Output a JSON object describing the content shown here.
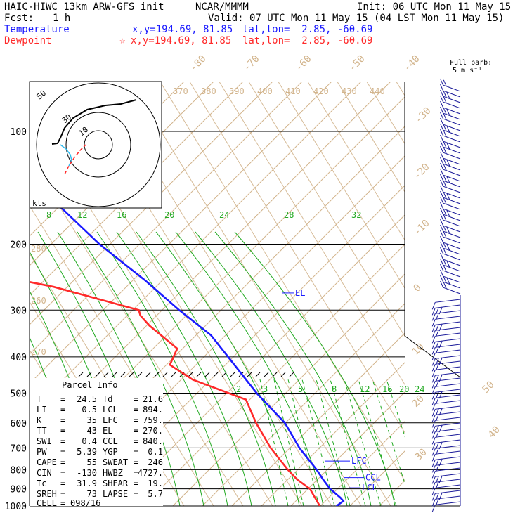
{
  "header": {
    "model": "HAIC-HIWC 13km ARW-GFS init",
    "agency": "NCAR/MMMM",
    "init": "Init: 06 UTC Mon 11 May 15",
    "fcst_label": "Fcst:",
    "fcst_value": "1 h",
    "valid": "Valid: 07 UTC Mon 11 May 15 (04 LST Mon 11 May 15)",
    "temp_label": "Temperature",
    "temp_xy": "x,y=194.69, 81.85",
    "temp_latlon": "lat,lon=  2.85, -60.69",
    "dew_label": "Dewpoint",
    "dew_star": "☆",
    "dew_xy": "x,y=194.69, 81.85",
    "dew_latlon": "lat,lon=  2.85, -60.69"
  },
  "colors": {
    "temperature": "#1a1aff",
    "dewpoint": "#ff2a2a",
    "dry_adiabat": "#d2b48c",
    "moist_adiabat": "#22aa22",
    "mixing_ratio": "#22aa22",
    "isobar": "#000000",
    "barb": "#1a1a99"
  },
  "barb_legend": {
    "line1": "Full barb:",
    "line2": "5 m s⁻¹"
  },
  "parcel_info": {
    "title": "Parcel Info",
    "rows": [
      {
        "l1": "T",
        "v1": "24.5",
        "l2": "Td",
        "v2": "21.6"
      },
      {
        "l1": "LI",
        "v1": "-0.5",
        "l2": "LCL",
        "v2": "894."
      },
      {
        "l1": "K",
        "v1": "35",
        "l2": "LFC",
        "v2": "759."
      },
      {
        "l1": "TT",
        "v1": "43",
        "l2": "EL",
        "v2": "270."
      },
      {
        "l1": "SWI",
        "v1": "0.4",
        "l2": "CCL",
        "v2": "840."
      },
      {
        "l1": "PW",
        "v1": "5.39",
        "l2": "YGP",
        "v2": "0.1"
      },
      {
        "l1": "CAPE",
        "v1": "55",
        "l2": "SWEAT",
        "v2": "246"
      },
      {
        "l1": "CIN",
        "v1": "-130",
        "l2": "HWBZ",
        "v2": "4727."
      },
      {
        "l1": "Tc",
        "v1": "31.9",
        "l2": "SHEAR",
        "v2": "19."
      },
      {
        "l1": "SREH",
        "v1": "73",
        "l2": "LAPSE",
        "v2": "5.7"
      }
    ],
    "cell_label": "CELL",
    "cell_value": "098/16"
  },
  "hodograph": {
    "axis_label": "kts",
    "ring_labels": [
      "10",
      "30",
      "50"
    ]
  },
  "levels": {
    "LFC": "LFC",
    "CCL": "CCL",
    "LCL": "LCL",
    "EL": "EL"
  },
  "chart_data": {
    "type": "line",
    "chart_kind": "skew-T log-P",
    "x_axis": "Temperature (°C), skewed",
    "y_axis": "Pressure (hPa), log scale",
    "y_ticks": [
      100,
      200,
      300,
      400,
      500,
      600,
      700,
      800,
      900,
      1000
    ],
    "dry_adiabat_labels": [
      "370",
      "380",
      "390",
      "400",
      "410",
      "420",
      "430",
      "440",
      "280",
      "260",
      "270"
    ],
    "isotherm_labels": [
      "-80",
      "-70",
      "-60",
      "-50",
      "-40",
      "-30",
      "-20",
      "-10",
      "0",
      "10",
      "20",
      "30",
      "40",
      "50"
    ],
    "mixing_ratio_labels_upper": [
      "8",
      "12",
      "16",
      "20",
      "24",
      "28",
      "32"
    ],
    "mixing_ratio_labels_lower": [
      "2",
      "3",
      "5",
      "8",
      "12",
      "16",
      "20",
      "24"
    ],
    "series": [
      {
        "name": "Temperature",
        "points": [
          [
            1000,
            24.5
          ],
          [
            970,
            25.0
          ],
          [
            950,
            24.0
          ],
          [
            900,
            21.0
          ],
          [
            850,
            18.5
          ],
          [
            800,
            16.0
          ],
          [
            700,
            10.0
          ],
          [
            600,
            4.0
          ],
          [
            500,
            -5.0
          ],
          [
            400,
            -15.0
          ],
          [
            350,
            -21.0
          ],
          [
            300,
            -30.0
          ],
          [
            250,
            -40.0
          ],
          [
            200,
            -53.0
          ],
          [
            150,
            -68.0
          ],
          [
            120,
            -78.0
          ],
          [
            100,
            -82.0
          ]
        ]
      },
      {
        "name": "Dewpoint",
        "points": [
          [
            1000,
            21.6
          ],
          [
            900,
            17.5
          ],
          [
            850,
            14.0
          ],
          [
            800,
            11.0
          ],
          [
            700,
            5.0
          ],
          [
            600,
            -1.0
          ],
          [
            520,
            -6.0
          ],
          [
            460,
            -18.0
          ],
          [
            420,
            -24.0
          ],
          [
            380,
            -25.0
          ],
          [
            330,
            -33.0
          ],
          [
            310,
            -36.0
          ],
          [
            300,
            -37.0
          ],
          [
            260,
            -55.0
          ],
          [
            240,
            -68.0
          ],
          [
            200,
            -72.0
          ],
          [
            150,
            -76.0
          ],
          [
            120,
            -85.0
          ],
          [
            100,
            -90.0
          ]
        ]
      }
    ]
  }
}
